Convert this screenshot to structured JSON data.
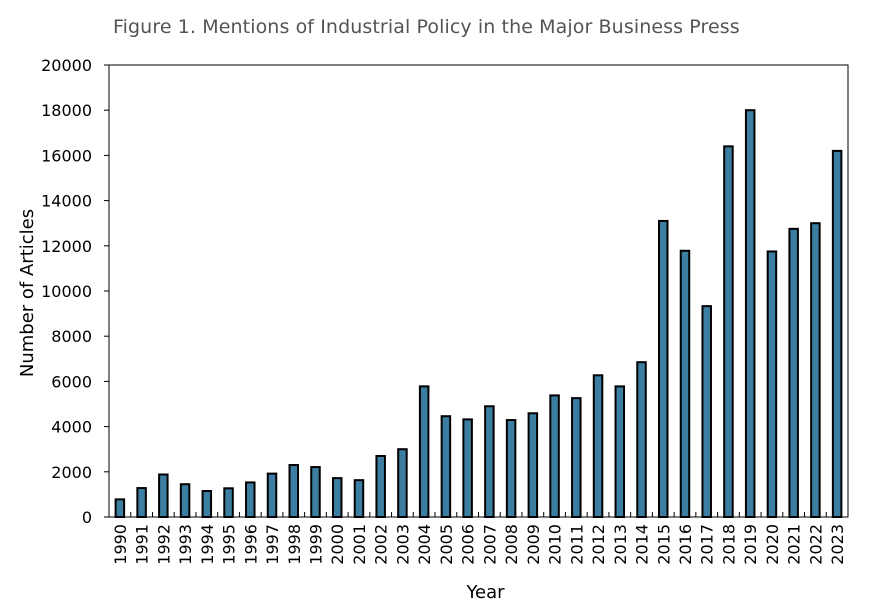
{
  "chart_data": {
    "type": "bar",
    "title": "Figure 1. Mentions of Industrial Policy in the Major Business Press",
    "xlabel": "Year",
    "ylabel": "Number of Articles",
    "ylim": [
      0,
      20000
    ],
    "yticks": [
      0,
      2000,
      4000,
      6000,
      8000,
      10000,
      12000,
      14000,
      16000,
      18000,
      20000
    ],
    "grid": false,
    "legend": "none",
    "bar_color": "#3b7ea1",
    "categories": [
      "1990",
      "1991",
      "1992",
      "1993",
      "1994",
      "1995",
      "1996",
      "1997",
      "1998",
      "1999",
      "2000",
      "2001",
      "2002",
      "2003",
      "2004",
      "2005",
      "2006",
      "2007",
      "2008",
      "2009",
      "2010",
      "2011",
      "2012",
      "2013",
      "2014",
      "2015",
      "2016",
      "2017",
      "2018",
      "2019",
      "2020",
      "2021",
      "2022",
      "2023"
    ],
    "values": [
      780,
      1280,
      1880,
      1450,
      1150,
      1270,
      1530,
      1920,
      2300,
      2210,
      1720,
      1630,
      2700,
      3000,
      5780,
      4460,
      4320,
      4900,
      4290,
      4590,
      5380,
      5260,
      6270,
      5780,
      6850,
      13100,
      11780,
      9330,
      16400,
      18000,
      11750,
      12750,
      13000,
      16200
    ]
  }
}
